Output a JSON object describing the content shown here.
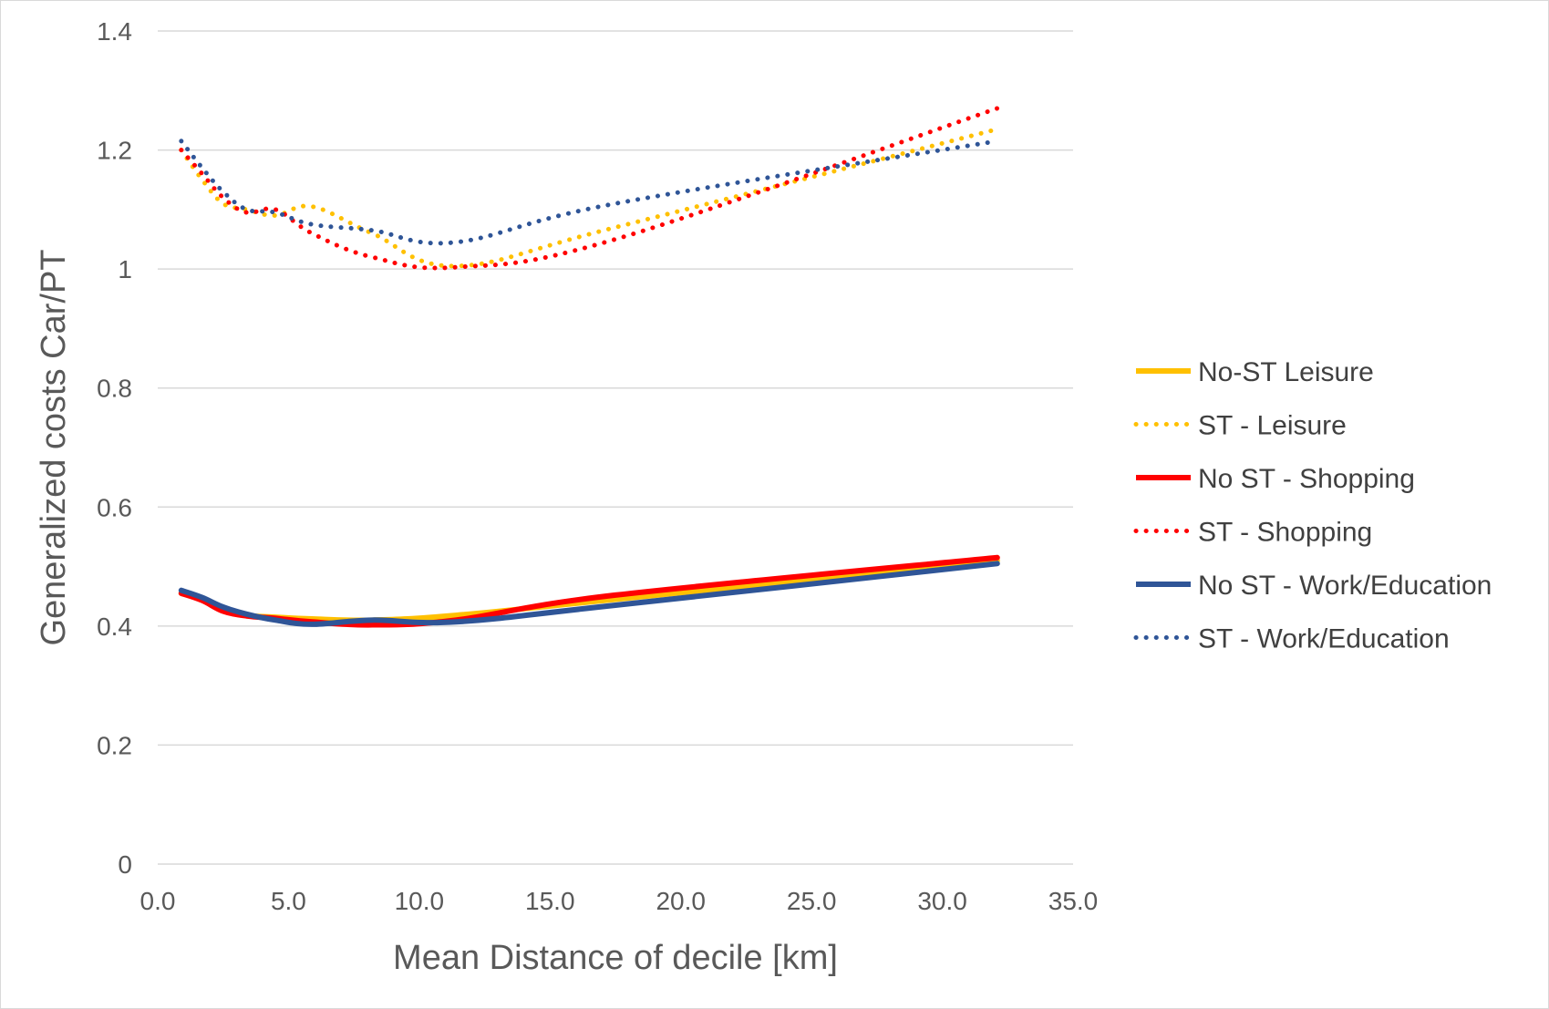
{
  "chart_data": {
    "type": "line",
    "title": "",
    "xlabel": "Mean Distance of decile [km]",
    "ylabel": "Generalized costs Car/PT",
    "xlim": [
      0,
      35
    ],
    "ylim": [
      0,
      1.4
    ],
    "x_ticks": [
      "0.0",
      "5.0",
      "10.0",
      "15.0",
      "20.0",
      "25.0",
      "30.0",
      "35.0"
    ],
    "y_ticks": [
      "0",
      "0.2",
      "0.4",
      "0.6",
      "0.8",
      "1",
      "1.2",
      "1.4"
    ],
    "grid": "horizontal",
    "legend_position": "right",
    "series": [
      {
        "name": "No-ST Leisure",
        "color": "#FFC000",
        "style": "solid",
        "x": [
          0.9,
          1.7,
          2.5,
          3.4,
          4.5,
          5.9,
          8.2,
          11.4,
          17.5,
          32.1
        ],
        "y": [
          0.455,
          0.445,
          0.428,
          0.418,
          0.415,
          0.412,
          0.41,
          0.418,
          0.445,
          0.51
        ]
      },
      {
        "name": "ST - Leisure",
        "color": "#FFC000",
        "style": "dotted",
        "x": [
          0.9,
          1.7,
          2.5,
          3.4,
          4.5,
          5.9,
          8.2,
          11.4,
          17.5,
          32.1
        ],
        "y": [
          1.2,
          1.15,
          1.11,
          1.1,
          1.09,
          1.105,
          1.06,
          1.005,
          1.07,
          1.235
        ]
      },
      {
        "name": "No ST - Shopping",
        "color": "#FF0000",
        "style": "solid",
        "x": [
          0.9,
          1.7,
          2.5,
          3.4,
          4.5,
          5.9,
          8.2,
          11.4,
          17.5,
          32.1
        ],
        "y": [
          0.455,
          0.443,
          0.425,
          0.417,
          0.413,
          0.407,
          0.402,
          0.41,
          0.452,
          0.515
        ]
      },
      {
        "name": "ST - Shopping",
        "color": "#FF0000",
        "style": "dotted",
        "x": [
          0.9,
          1.7,
          2.5,
          3.4,
          4.5,
          5.9,
          8.2,
          11.4,
          17.5,
          32.1
        ],
        "y": [
          1.2,
          1.16,
          1.12,
          1.095,
          1.1,
          1.06,
          1.02,
          1.003,
          1.05,
          1.27
        ]
      },
      {
        "name": "No ST - Work/Education",
        "color": "#2F5597",
        "style": "solid",
        "x": [
          0.9,
          1.7,
          2.5,
          3.4,
          4.5,
          5.9,
          8.2,
          11.4,
          17.5,
          32.1
        ],
        "y": [
          0.46,
          0.448,
          0.432,
          0.42,
          0.41,
          0.403,
          0.41,
          0.407,
          0.435,
          0.505
        ]
      },
      {
        "name": "ST - Work/Education",
        "color": "#2F5597",
        "style": "dotted",
        "x": [
          0.9,
          1.7,
          2.5,
          3.4,
          4.5,
          5.9,
          8.2,
          11.4,
          17.5,
          32.1
        ],
        "y": [
          1.215,
          1.17,
          1.13,
          1.1,
          1.095,
          1.075,
          1.065,
          1.045,
          1.11,
          1.215
        ]
      }
    ]
  }
}
